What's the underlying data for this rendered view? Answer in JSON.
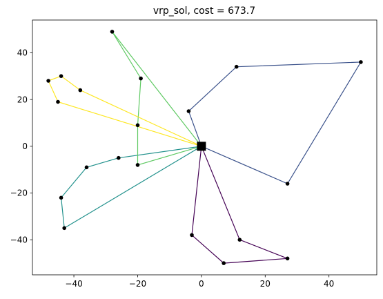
{
  "chart_data": {
    "type": "line",
    "title": "vrp_sol, cost = 673.7",
    "xlabel": "",
    "ylabel": "",
    "xlim": [
      -53,
      55
    ],
    "ylim": [
      -55,
      54
    ],
    "xticks": [
      -40,
      -20,
      0,
      20,
      40
    ],
    "yticks": [
      -40,
      -20,
      0,
      20,
      40
    ],
    "grid": false,
    "depot": {
      "x": 0,
      "y": 0,
      "color": "#000000"
    },
    "series": [
      {
        "color": "#440154",
        "points": [
          [
            0,
            0
          ],
          [
            -3,
            -38
          ],
          [
            7,
            -50
          ],
          [
            27,
            -48
          ],
          [
            12,
            -40
          ],
          [
            0,
            0
          ]
        ]
      },
      {
        "color": "#3b528b",
        "points": [
          [
            0,
            0
          ],
          [
            27,
            -16
          ],
          [
            50,
            36
          ],
          [
            11,
            34
          ],
          [
            -4,
            15
          ],
          [
            0,
            0
          ]
        ]
      },
      {
        "color": "#21918c",
        "points": [
          [
            0,
            0
          ],
          [
            -26,
            -5
          ],
          [
            -36,
            -9
          ],
          [
            -44,
            -22
          ],
          [
            -43,
            -35
          ],
          [
            0,
            0
          ]
        ]
      },
      {
        "color": "#5ec962",
        "points": [
          [
            0,
            0
          ],
          [
            -28,
            49
          ],
          [
            -19,
            29
          ],
          [
            -20,
            9
          ],
          [
            -20,
            -8
          ],
          [
            0,
            0
          ]
        ]
      },
      {
        "color": "#fde725",
        "points": [
          [
            0,
            0
          ],
          [
            -45,
            19
          ],
          [
            -48,
            28
          ],
          [
            -44,
            30
          ],
          [
            -38,
            24
          ],
          [
            0,
            0
          ]
        ]
      }
    ]
  }
}
